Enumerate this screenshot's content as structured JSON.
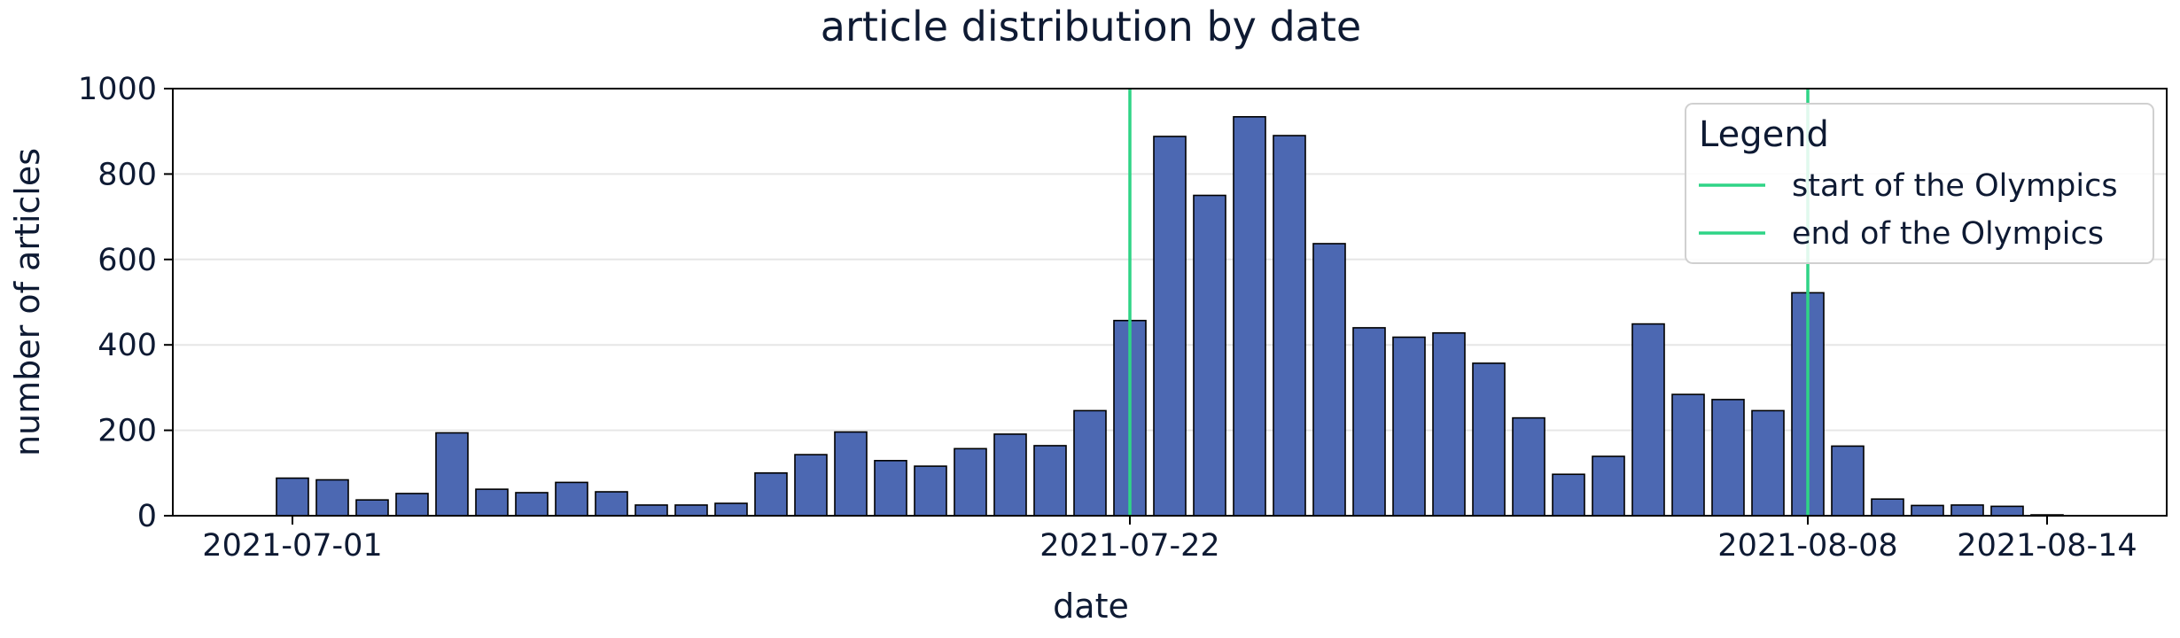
{
  "chart_data": {
    "type": "bar",
    "title": "article distribution by date",
    "xlabel": "date",
    "ylabel": "number of articles",
    "ylim": [
      0,
      1000
    ],
    "yticks": [
      0,
      200,
      400,
      600,
      800,
      1000
    ],
    "xlim": [
      "2021-06-28",
      "2021-08-17"
    ],
    "xticks": [
      "2021-07-01",
      "2021-07-22",
      "2021-08-08",
      "2021-08-14"
    ],
    "grid": "horizontal",
    "bar_color": "#4c68b2",
    "bar_edge_color": "#000000",
    "categories": [
      "2021-07-01",
      "2021-07-02",
      "2021-07-03",
      "2021-07-04",
      "2021-07-05",
      "2021-07-06",
      "2021-07-07",
      "2021-07-08",
      "2021-07-09",
      "2021-07-10",
      "2021-07-11",
      "2021-07-12",
      "2021-07-13",
      "2021-07-14",
      "2021-07-15",
      "2021-07-16",
      "2021-07-17",
      "2021-07-18",
      "2021-07-19",
      "2021-07-20",
      "2021-07-21",
      "2021-07-22",
      "2021-07-23",
      "2021-07-24",
      "2021-07-25",
      "2021-07-26",
      "2021-07-27",
      "2021-07-28",
      "2021-07-29",
      "2021-07-30",
      "2021-07-31",
      "2021-08-01",
      "2021-08-02",
      "2021-08-03",
      "2021-08-04",
      "2021-08-05",
      "2021-08-06",
      "2021-08-07",
      "2021-08-08",
      "2021-08-09",
      "2021-08-10",
      "2021-08-11",
      "2021-08-12",
      "2021-08-13",
      "2021-08-14"
    ],
    "values": [
      88,
      84,
      37,
      52,
      194,
      62,
      54,
      78,
      56,
      25,
      25,
      29,
      100,
      143,
      196,
      129,
      116,
      157,
      191,
      164,
      246,
      457,
      888,
      750,
      934,
      890,
      637,
      440,
      418,
      428,
      357,
      229,
      97,
      139,
      449,
      284,
      272,
      246,
      522,
      163,
      39,
      24,
      25,
      22,
      2
    ],
    "reference_lines": [
      {
        "name": "start of the Olympics",
        "x": "2021-07-22",
        "color": "#2fd486"
      },
      {
        "name": "end of the Olympics",
        "x": "2021-08-08",
        "color": "#2fd486"
      }
    ],
    "legend": {
      "title": "Legend",
      "position": "top-right",
      "items": [
        "start of the Olympics",
        "end of the Olympics"
      ]
    }
  }
}
